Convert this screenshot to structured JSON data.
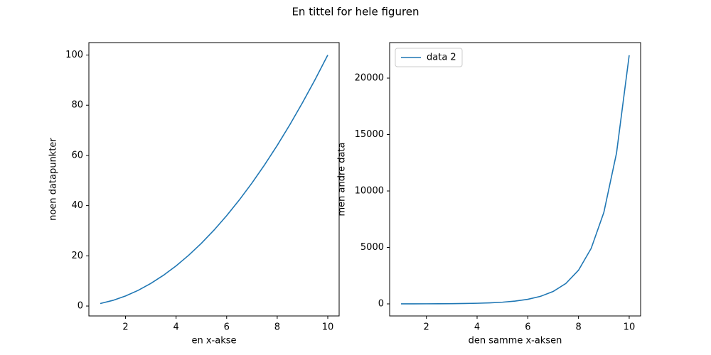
{
  "title": "En tittel for hele figuren",
  "chart_data": [
    {
      "type": "line",
      "x": [
        1,
        1.5,
        2,
        2.5,
        3,
        3.5,
        4,
        4.5,
        5,
        5.5,
        6,
        6.5,
        7,
        7.5,
        8,
        8.5,
        9,
        9.5,
        10
      ],
      "values": [
        1,
        2.25,
        4,
        6.25,
        9,
        12.25,
        16,
        20.25,
        25,
        30.25,
        36,
        42.25,
        49,
        56.25,
        64,
        72.25,
        81,
        90.25,
        100
      ],
      "color": "#1f77b4",
      "x_label": "en x-akse",
      "y_label": "noen datapunkter",
      "xlim": [
        0.55,
        10.45
      ],
      "xticks": [
        2,
        4,
        6,
        8,
        10
      ],
      "ylim": [
        -3.95,
        104.95
      ],
      "yticks": [
        0,
        20,
        40,
        60,
        80,
        100
      ]
    },
    {
      "type": "line",
      "x": [
        1,
        1.5,
        2,
        2.5,
        3,
        3.5,
        4,
        4.5,
        5,
        5.5,
        6,
        6.5,
        7,
        7.5,
        8,
        8.5,
        9,
        9.5,
        10
      ],
      "series": [
        {
          "name": "data 2",
          "color": "#1f77b4",
          "values": [
            2.72,
            4.48,
            7.39,
            12.18,
            20.09,
            33.12,
            54.6,
            90.02,
            148.41,
            244.69,
            403.43,
            665.14,
            1096.63,
            1808.04,
            2980.96,
            4914.77,
            8103.08,
            13359.73,
            22026.47
          ]
        }
      ],
      "x_label": "den samme x-aksen",
      "y_label": "men andre data",
      "legend": "upper left",
      "xlim": [
        0.55,
        10.45
      ],
      "xticks": [
        2,
        4,
        6,
        8,
        10
      ],
      "ylim": [
        -1070,
        23146
      ],
      "yticks": [
        0,
        5000,
        10000,
        15000,
        20000
      ]
    }
  ]
}
